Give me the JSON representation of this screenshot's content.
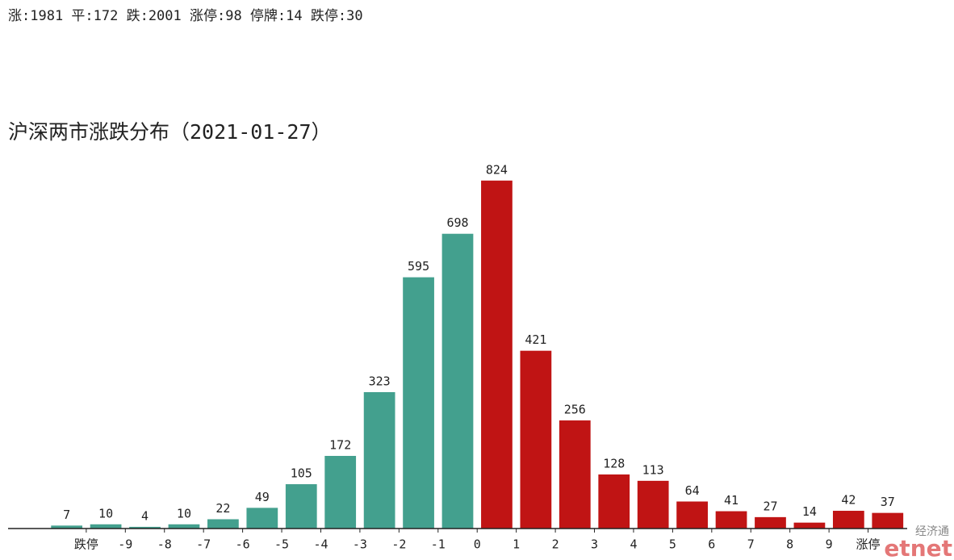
{
  "header": "涨:1981 平:172 跌:2001 涨停:98 停牌:14 跌停:30",
  "watermark": {
    "chinese": "经济通",
    "brand": "etnet"
  },
  "chart_data": {
    "type": "histogram",
    "title": "沪深两市涨跌分布（2021-01-27）",
    "bins": [
      -11,
      -10,
      -9,
      -8,
      -7,
      -6,
      -5,
      -4,
      -3,
      -2,
      -1,
      0,
      1,
      2,
      3,
      4,
      5,
      6,
      7,
      8,
      9,
      10,
      11
    ],
    "values": [
      7,
      10,
      4,
      10,
      22,
      49,
      105,
      172,
      323,
      595,
      698,
      824,
      421,
      256,
      128,
      113,
      64,
      41,
      27,
      14,
      42,
      37
    ],
    "color_below_zero": "#43a08e",
    "color_above_zero": "#c01414",
    "xlim": [
      -12,
      11
    ],
    "ylim": [
      0,
      900
    ],
    "xticks": [
      {
        "value": -10,
        "label": "跌停"
      },
      -9,
      -8,
      -7,
      -6,
      -5,
      -4,
      -3,
      -2,
      -1,
      0,
      1,
      2,
      3,
      4,
      5,
      6,
      7,
      8,
      9,
      {
        "value": 10,
        "label": "涨停"
      }
    ],
    "grid": false
  }
}
